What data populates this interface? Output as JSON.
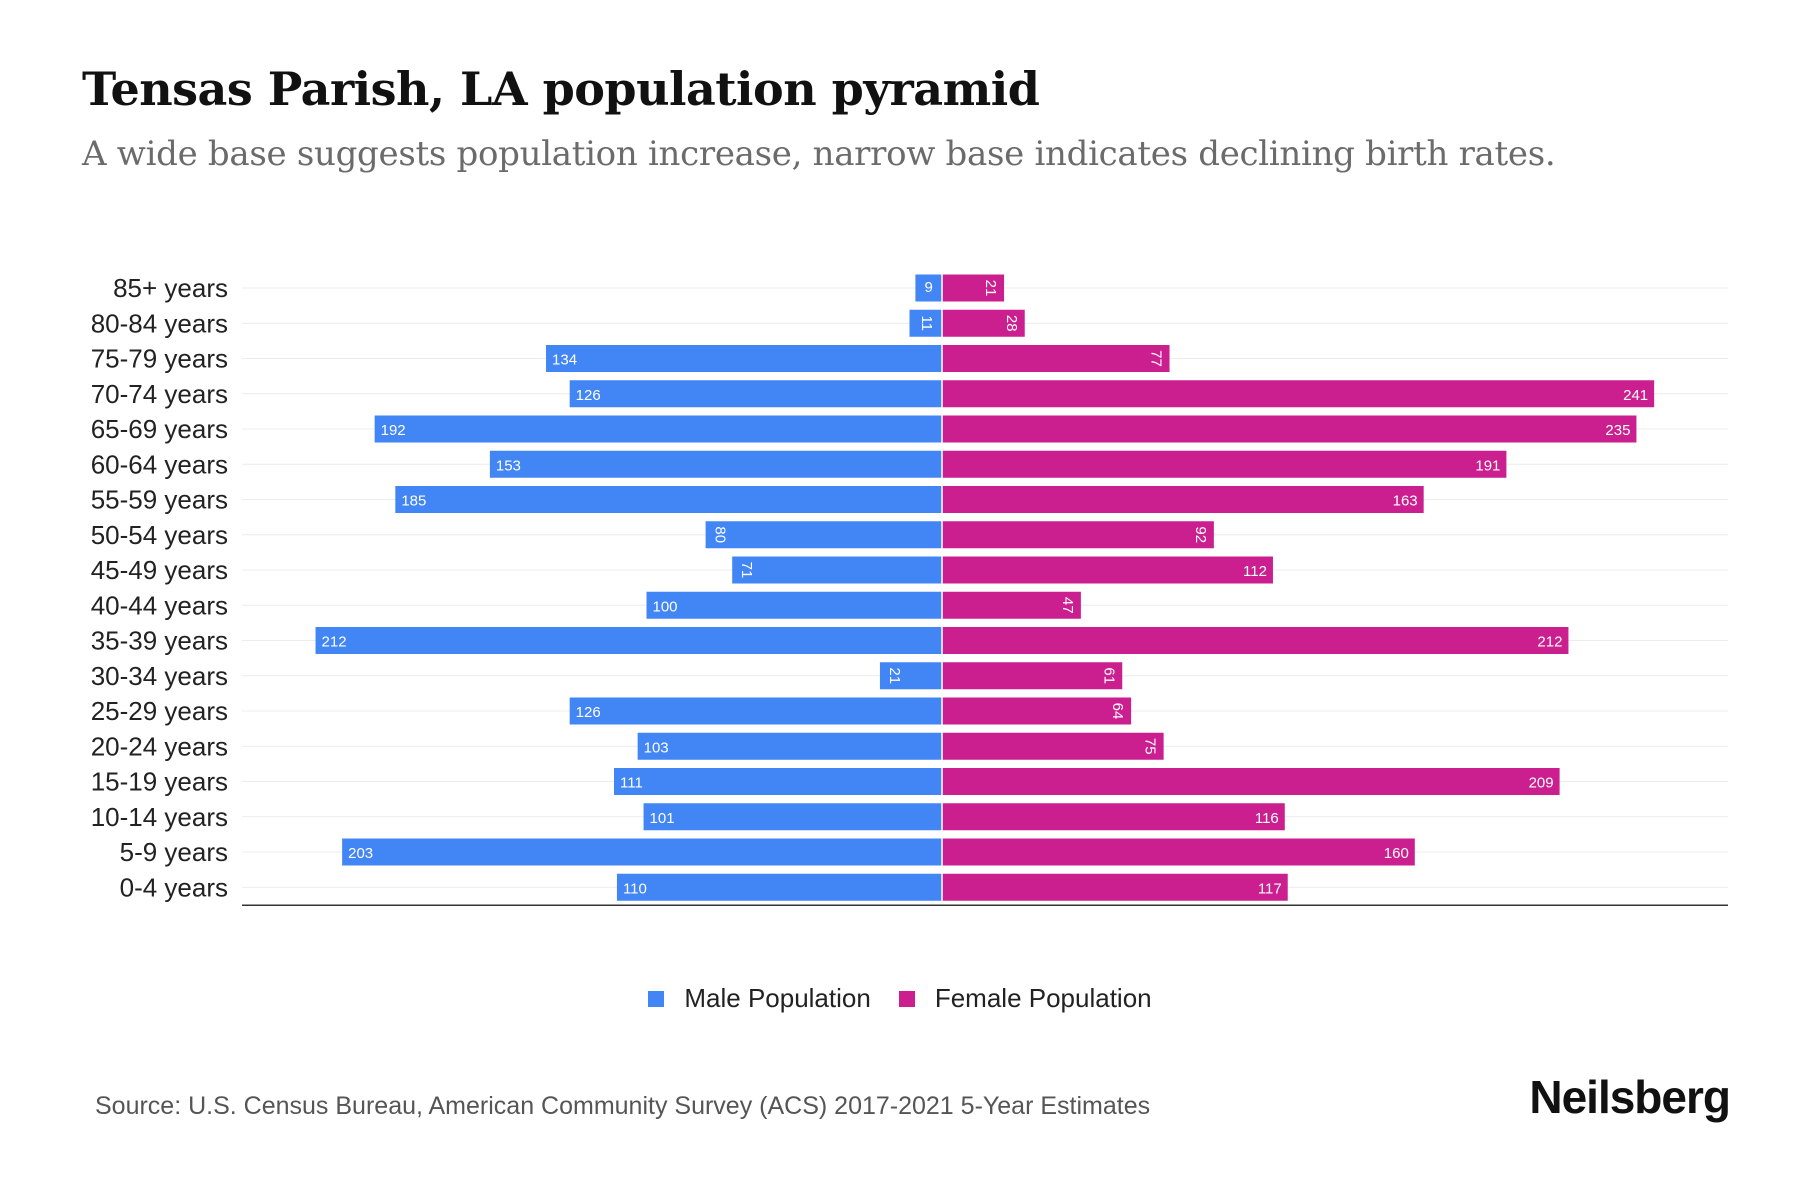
{
  "header": {
    "title": "Tensas Parish, LA population pyramid",
    "subtitle": "A wide base suggests population increase, narrow base indicates declining birth rates."
  },
  "footer": {
    "source": "Source: U.S. Census Bureau, American Community Survey (ACS) 2017-2021 5-Year Estimates",
    "brand": "Neilsberg"
  },
  "legend": [
    {
      "label": "Male Population",
      "color": "#4285f4"
    },
    {
      "label": "Female Population",
      "color": "#cc1f8f"
    }
  ],
  "chart_data": {
    "type": "bar",
    "orientation": "horizontal",
    "layout": "population-pyramid",
    "title": "Tensas Parish, LA population pyramid",
    "subtitle": "A wide base suggests population increase, narrow base indicates declining birth rates.",
    "xlabel": "",
    "ylabel": "",
    "grid": true,
    "legend_position": "bottom",
    "xlim": [
      -250,
      250
    ],
    "categories": [
      "85+ years",
      "80-84 years",
      "75-79 years",
      "70-74 years",
      "65-69 years",
      "60-64 years",
      "55-59 years",
      "50-54 years",
      "45-49 years",
      "40-44 years",
      "35-39 years",
      "30-34 years",
      "25-29 years",
      "20-24 years",
      "15-19 years",
      "10-14 years",
      "5-9 years",
      "0-4 years"
    ],
    "series": [
      {
        "name": "Male Population",
        "color": "#4285f4",
        "side": "left",
        "values": [
          9,
          11,
          134,
          126,
          192,
          153,
          185,
          80,
          71,
          100,
          212,
          21,
          126,
          103,
          111,
          101,
          203,
          110
        ]
      },
      {
        "name": "Female Population",
        "color": "#cc1f8f",
        "side": "right",
        "values": [
          21,
          28,
          77,
          241,
          235,
          191,
          163,
          92,
          112,
          47,
          212,
          61,
          64,
          75,
          209,
          116,
          160,
          117
        ]
      }
    ]
  }
}
